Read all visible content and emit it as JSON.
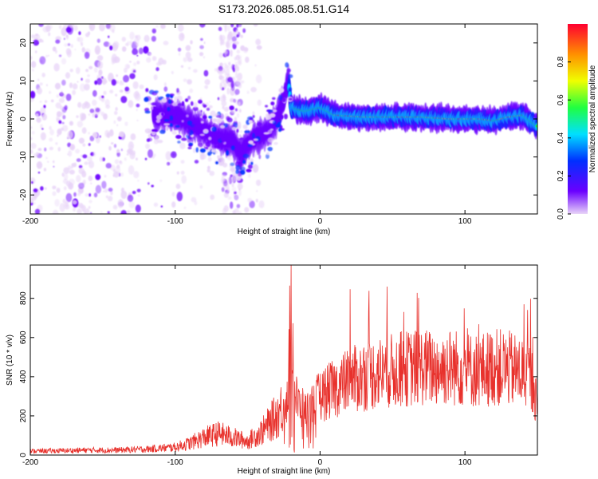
{
  "title": "S173.2026.085.08.51.G14",
  "chart_data": [
    {
      "type": "heatmap",
      "xlabel": "Height of straight line (km)",
      "ylabel": "Frequency (Hz)",
      "xlim": [
        -200,
        150
      ],
      "ylim": [
        -25,
        25
      ],
      "xticks": [
        -200,
        -100,
        0,
        100
      ],
      "yticks": [
        -20,
        -10,
        0,
        10,
        20
      ],
      "grid": false,
      "colorbar": {
        "label": "Normalized spectral amplitude",
        "range": [
          0,
          1
        ],
        "ticks": [
          "0.0",
          "0.2",
          "0.4",
          "0.6",
          "0.8"
        ],
        "colormap": [
          "#e8d4f8",
          "#6a00ff",
          "#0030ff",
          "#00e0ff",
          "#20ff40",
          "#f0ff00",
          "#ff9000",
          "#ff0030"
        ]
      },
      "ridge": {
        "x": [
          -100,
          -90,
          -80,
          -70,
          -60,
          -55,
          -45,
          -35,
          -30,
          -25,
          -22,
          -20,
          -10,
          0,
          10,
          30,
          50,
          70,
          90,
          110,
          120,
          130,
          140,
          150
        ],
        "y": [
          1,
          -1,
          -3,
          -5,
          -6,
          -9,
          -5,
          -3,
          0,
          5,
          10,
          3,
          2,
          3,
          1,
          0.5,
          0.5,
          0.5,
          0,
          0,
          -0.5,
          0.5,
          1,
          -2
        ]
      }
    },
    {
      "type": "line",
      "xlabel": "Height of straight line (km)",
      "ylabel": "SNR (10 * v/v)",
      "xlim": [
        -200,
        150
      ],
      "ylim": [
        0,
        970
      ],
      "xticks": [
        -200,
        -100,
        0,
        100
      ],
      "yticks": [
        0,
        200,
        400,
        600,
        800
      ],
      "grid": false,
      "color": "#e8312c",
      "series": [
        {
          "x": [
            -200,
            -180,
            -160,
            -140,
            -120,
            -100,
            -90,
            -80,
            -70,
            -60,
            -50,
            -40,
            -30,
            -25,
            -22,
            -20,
            -18,
            -15,
            -10,
            -5,
            0,
            10,
            20,
            30,
            40,
            50,
            60,
            70,
            80,
            90,
            100,
            110,
            120,
            130,
            140,
            145,
            148,
            150
          ],
          "y": [
            20,
            22,
            25,
            25,
            30,
            40,
            60,
            90,
            110,
            90,
            70,
            120,
            200,
            260,
            280,
            970,
            320,
            260,
            220,
            260,
            300,
            340,
            380,
            400,
            420,
            430,
            440,
            450,
            440,
            450,
            440,
            430,
            450,
            440,
            420,
            400,
            350,
            200
          ]
        }
      ]
    }
  ]
}
